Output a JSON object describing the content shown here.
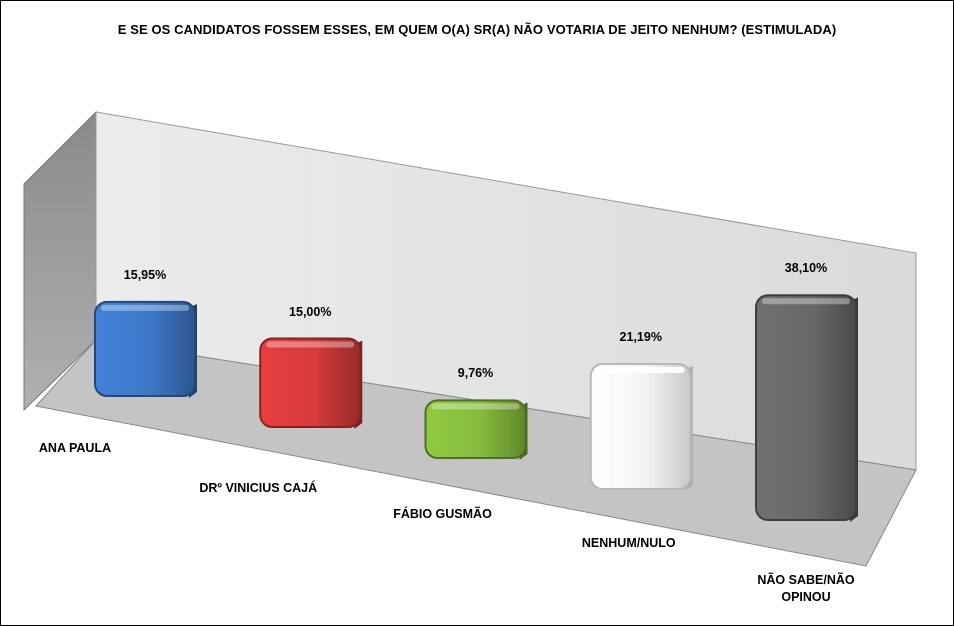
{
  "chart_data": {
    "type": "bar",
    "title": "E SE OS CANDIDATOS FOSSEM ESSES, EM QUEM O(A) SR(A) NÃO VOTARIA DE JEITO NENHUM? (ESTIMULADA)",
    "categories": [
      "ANA PAULA",
      "DRº VINICIUS CAJÁ",
      "FÁBIO GUSMÃO",
      "NENHUM/NULO",
      "NÃO SABE/NÃO OPINOU"
    ],
    "values": [
      15.95,
      15.0,
      9.76,
      21.19,
      38.1
    ],
    "value_labels": [
      "15,95%",
      "15,00%",
      "9,76%",
      "21,19%",
      "38,10%"
    ],
    "colors": [
      "#3d78c8",
      "#d63a3a",
      "#86bb3c",
      "#f4f4f4",
      "#686868"
    ],
    "xlabel": "",
    "ylabel": "",
    "style": "3d-column",
    "legend": "none",
    "grid": false
  }
}
